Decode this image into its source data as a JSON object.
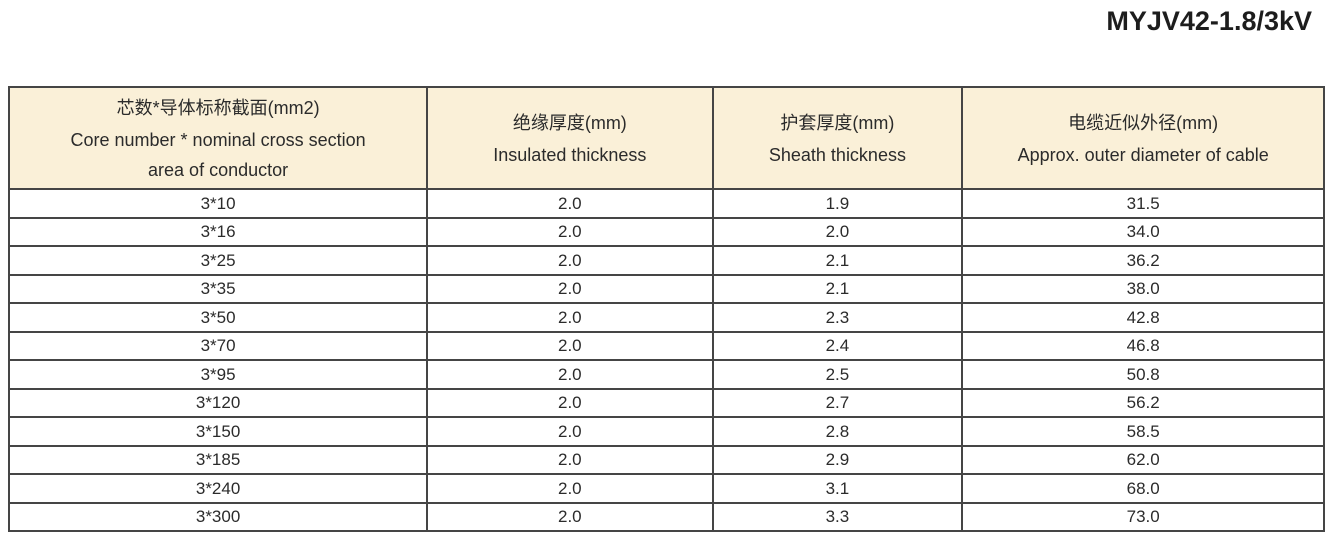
{
  "page": {
    "title": "MYJV42-1.8/3kV"
  },
  "table": {
    "columns": [
      {
        "zh": "芯数*导体标称截面(mm2)",
        "en": "Core number * nominal cross section area of conductor"
      },
      {
        "zh": "绝缘厚度(mm)",
        "en": "Insulated thickness"
      },
      {
        "zh": "护套厚度(mm)",
        "en": "Sheath thickness"
      },
      {
        "zh": "电缆近似外径(mm)",
        "en": "Approx. outer diameter of cable"
      }
    ],
    "rows": [
      [
        "3*10",
        "2.0",
        "1.9",
        "31.5"
      ],
      [
        "3*16",
        "2.0",
        "2.0",
        "34.0"
      ],
      [
        "3*25",
        "2.0",
        "2.1",
        "36.2"
      ],
      [
        "3*35",
        "2.0",
        "2.1",
        "38.0"
      ],
      [
        "3*50",
        "2.0",
        "2.3",
        "42.8"
      ],
      [
        "3*70",
        "2.0",
        "2.4",
        "46.8"
      ],
      [
        "3*95",
        "2.0",
        "2.5",
        "50.8"
      ],
      [
        "3*120",
        "2.0",
        "2.7",
        "56.2"
      ],
      [
        "3*150",
        "2.0",
        "2.8",
        "58.5"
      ],
      [
        "3*185",
        "2.0",
        "2.9",
        "62.0"
      ],
      [
        "3*240",
        "2.0",
        "3.1",
        "68.0"
      ],
      [
        "3*300",
        "2.0",
        "3.3",
        "73.0"
      ]
    ]
  },
  "colors": {
    "header_bg": "#faf0d8",
    "border": "#454545",
    "text": "#2b2b2b"
  }
}
